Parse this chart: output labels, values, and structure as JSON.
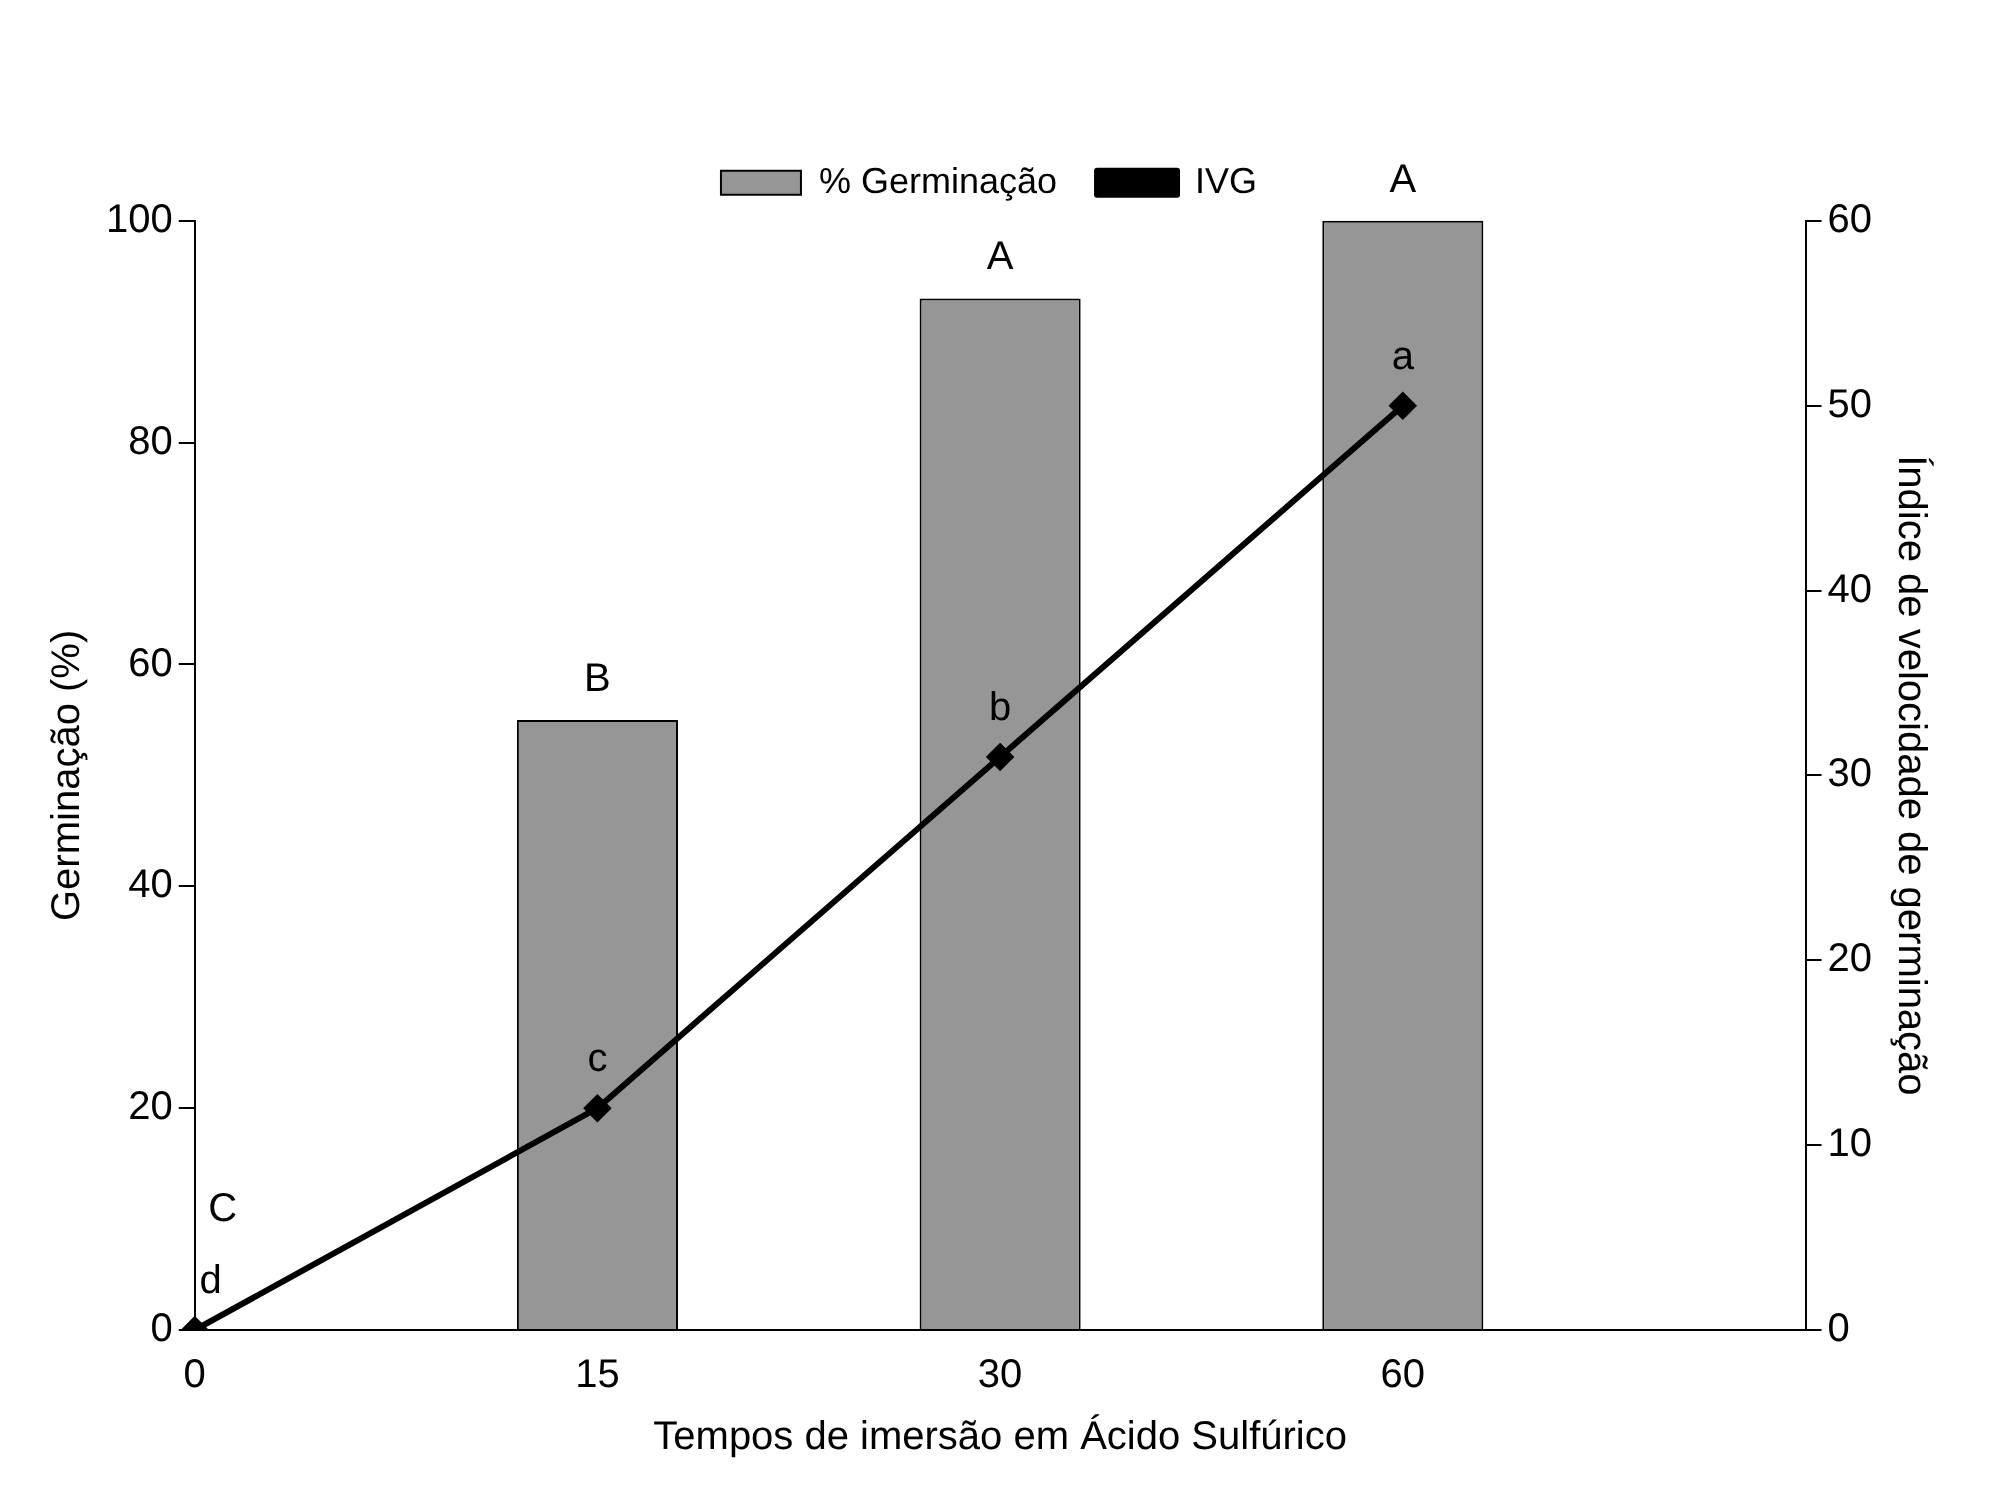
{
  "chart_data": {
    "type": "bar",
    "xlabel": "Tempos de imersão em Ácido Sulfúrico",
    "ylabel": "Germinação (%)",
    "y2label": "Índice de velocidade de germinação",
    "categories": [
      "0",
      "15",
      "30",
      "60",
      null
    ],
    "series": [
      {
        "name": "% Germinação",
        "color": "#969696",
        "values": [
          0,
          55,
          93,
          100,
          null
        ],
        "value_labels": [
          "C",
          "B",
          "A",
          "A",
          null
        ]
      },
      {
        "name": "IVG",
        "type": "line",
        "axis": "y2",
        "color": "#000000",
        "values": [
          0,
          12,
          31,
          50,
          null
        ],
        "value_labels": [
          "d",
          "c",
          "b",
          "a",
          null
        ]
      }
    ],
    "ylim": [
      0,
      100
    ],
    "yticks": [
      0,
      20,
      40,
      60,
      80,
      100
    ],
    "y2lim": [
      0,
      60
    ],
    "y2ticks": [
      0,
      10,
      20,
      30,
      40,
      50,
      60
    ],
    "grid": false,
    "legend": "top",
    "marker": "diamond",
    "line_style": "solid"
  }
}
